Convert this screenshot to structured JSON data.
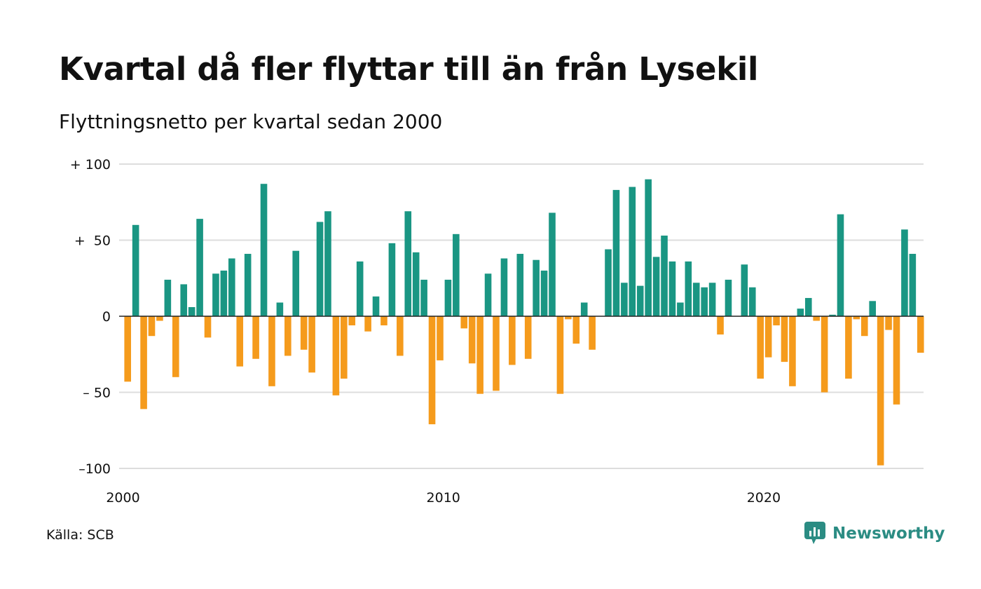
{
  "title": "Kvartal då fler flyttar till än från Lysekil",
  "subtitle": "Flyttningsnetto per kvartal sedan 2000",
  "source": "Källa: SCB",
  "brand": {
    "name": "Newsworthy",
    "icon": "newsworthy-logo-icon",
    "color": "#2b8c83"
  },
  "colors": {
    "positive": "#1a9683",
    "negative": "#f59b1c",
    "grid": "#dddddd",
    "zero": "#222222"
  },
  "chart_data": {
    "type": "bar",
    "ylim": [
      -100,
      100
    ],
    "yticks": [
      {
        "value": 100,
        "label": "+ 100"
      },
      {
        "value": 50,
        "label": "+  50"
      },
      {
        "value": 0,
        "label": "0"
      },
      {
        "value": -50,
        "label": "– 50"
      },
      {
        "value": -100,
        "label": "–100"
      }
    ],
    "xticks": [
      "2000",
      "2010",
      "2020"
    ],
    "start_year": 2000,
    "grid": true,
    "legend": "none",
    "series": [
      {
        "values": [
          -43,
          60,
          -61,
          -13,
          -3,
          24,
          -40,
          21,
          6,
          64,
          -14,
          28,
          30,
          38,
          -33,
          41,
          -28,
          87,
          -46,
          9,
          -26,
          43,
          -22,
          -37,
          62,
          69,
          -52,
          -41,
          -6,
          36,
          -10,
          13,
          -6,
          48,
          -26,
          69,
          42,
          24,
          -71,
          -29,
          24,
          54,
          -8,
          -31,
          -51,
          28,
          -49,
          38,
          -32,
          41,
          -28,
          37,
          30,
          68,
          -51,
          -2,
          -18,
          9,
          -22,
          0,
          44,
          83,
          22,
          85,
          20,
          90,
          39,
          53,
          36,
          9,
          36,
          22,
          19,
          22,
          -12,
          24,
          0,
          34,
          19,
          -41,
          -27,
          -6,
          -30,
          -46,
          5,
          12,
          -3,
          -50,
          1,
          67,
          -41,
          -2,
          -13,
          10,
          -98,
          -9,
          -58,
          57,
          41,
          -24
        ]
      }
    ]
  }
}
